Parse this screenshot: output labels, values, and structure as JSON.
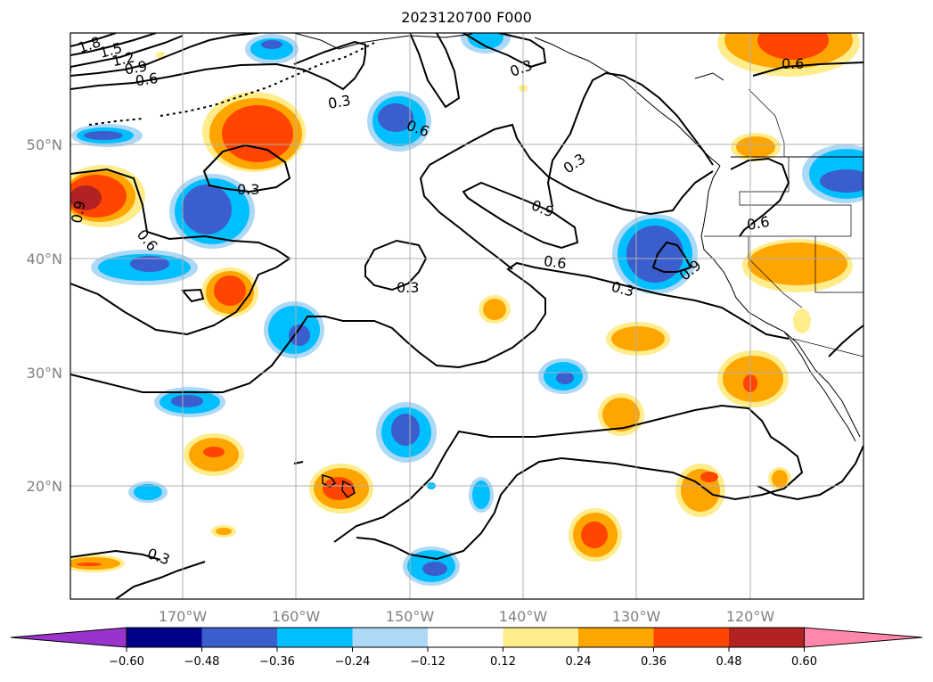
{
  "title": "2023120700 F000",
  "axes": {
    "lon_labels": [
      "170°W",
      "160°W",
      "150°W",
      "140°W",
      "130°W",
      "120°W"
    ],
    "lat_labels": [
      "50°N",
      "40°N",
      "30°N",
      "20°N"
    ]
  },
  "colorbar": {
    "colors": [
      "#9933cc",
      "#00008b",
      "#3a5fcd",
      "#00bfff",
      "#add8f6",
      "#ffffff",
      "#ffec8b",
      "#ffa500",
      "#ff4500",
      "#b22222",
      "#ff88aa"
    ],
    "tick_labels": [
      "−0.60",
      "−0.48",
      "−0.36",
      "−0.24",
      "−0.12",
      "0.12",
      "0.24",
      "0.36",
      "0.48",
      "0.60"
    ],
    "extend": "both"
  },
  "contour_labels": [
    "1.8",
    "1.5",
    "1.2",
    "0.9",
    "0.6",
    "0.3",
    "0.3",
    "0.6",
    "0.3",
    "0.3",
    "0.9",
    "0.6",
    "0.6",
    "0.6",
    "0.3",
    "0.9",
    "0.6",
    "0.9",
    "0.3",
    "0.3"
  ]
}
